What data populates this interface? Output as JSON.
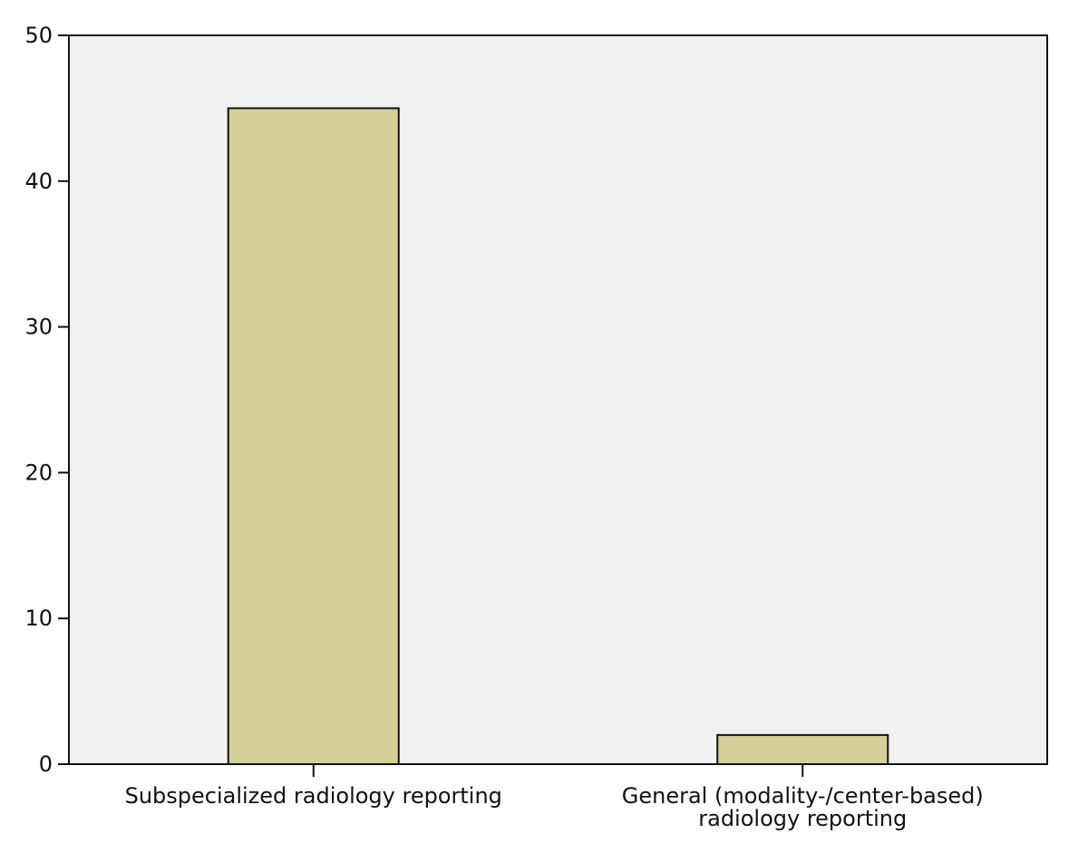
{
  "chart_data": {
    "type": "bar",
    "categories": [
      [
        "Subspecialized radiology reporting"
      ],
      [
        "General (modality-/center-based)",
        "radiology reporting"
      ]
    ],
    "values": [
      45,
      2
    ],
    "title": "",
    "xlabel": "",
    "ylabel": "",
    "ylim": [
      0,
      50
    ],
    "yticks": [
      0,
      10,
      20,
      30,
      40,
      50
    ],
    "grid": false,
    "colors": {
      "bar_fill": "#d3cf97",
      "bar_stroke": "#111111",
      "plot_background": "#f0f0f0",
      "axis": "#111111"
    }
  }
}
